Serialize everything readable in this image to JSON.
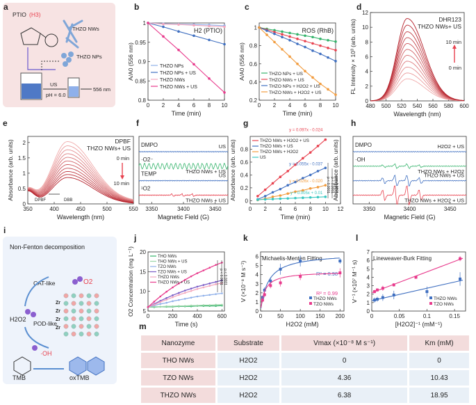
{
  "colors": {
    "red": "#e8424f",
    "pink": "#f06f98",
    "blue": "#3f6fc0",
    "lightblue": "#8fb0ea",
    "orange": "#f29c3e",
    "green": "#34b36b",
    "teal": "#38c7c0",
    "purple": "#7a5cc6",
    "gray": "#999999",
    "darkred": "#c42833",
    "magenta": "#e83a8c"
  },
  "panels": {
    "a": {
      "label": "a",
      "ptio": "PTIO",
      "h3": "(H3)",
      "nws": "THZO NWs",
      "nps": "THZO NPs",
      "us": "US",
      "ph": "pH = 6.0",
      "nm": "556 nm"
    },
    "i": {
      "label": "i",
      "title": "Non-Fenton decomposition",
      "cat": "CAT-like",
      "pod": "POD-like",
      "o2": "O2",
      "h2o2": "H2O2",
      "oh": "·OH",
      "tmb": "TMB",
      "oxtmb": "oxTMB",
      "zr": "Zr"
    }
  },
  "chart_data": [
    {
      "id": "b",
      "type": "line",
      "title": "H2 (PTIO)",
      "xlabel": "Time (min)",
      "ylabel": "A/A0 (556 nm)",
      "xlim": [
        0,
        10
      ],
      "ylim": [
        0.8,
        1.0
      ],
      "x": [
        0,
        2,
        4,
        6,
        8,
        10
      ],
      "xticks": [
        0,
        2,
        4,
        6,
        8,
        10
      ],
      "yticks": [
        0.8,
        0.85,
        0.9,
        0.95,
        1.0
      ],
      "series": [
        {
          "name": "THZO NPs",
          "color": "#8fb0ea",
          "values": [
            1.0,
            0.998,
            0.997,
            0.996,
            0.995,
            0.993
          ]
        },
        {
          "name": "THZO NPs + US",
          "color": "#3f6fc0",
          "values": [
            1.0,
            0.99,
            0.978,
            0.967,
            0.956,
            0.945
          ]
        },
        {
          "name": "THZO NWs",
          "color": "#f4a7bd",
          "values": [
            1.0,
            0.997,
            0.996,
            0.994,
            0.992,
            0.99
          ]
        },
        {
          "name": "THZO NWs + US",
          "color": "#e83a8c",
          "values": [
            1.0,
            0.965,
            0.93,
            0.893,
            0.856,
            0.82
          ]
        }
      ]
    },
    {
      "id": "c",
      "type": "line",
      "title": "ROS (RhB)",
      "xlabel": "Time (min)",
      "ylabel": "A/A0 (556 nm)",
      "xlim": [
        0,
        10
      ],
      "ylim": [
        0.2,
        1.05
      ],
      "x": [
        0,
        1,
        2,
        3,
        4,
        5,
        6,
        7,
        8,
        9,
        10
      ],
      "xticks": [
        0,
        2,
        4,
        6,
        8,
        10
      ],
      "yticks": [
        0.2,
        0.4,
        0.6,
        0.8,
        1.0
      ],
      "series": [
        {
          "name": "THZO NPs + US",
          "color": "#34b36b",
          "values": [
            1.0,
            0.985,
            0.97,
            0.955,
            0.94,
            0.925,
            0.91,
            0.895,
            0.875,
            0.86,
            0.845
          ]
        },
        {
          "name": "THZO NWs + US",
          "color": "#e8424f",
          "values": [
            1.0,
            0.975,
            0.95,
            0.925,
            0.9,
            0.875,
            0.85,
            0.825,
            0.8,
            0.775,
            0.75
          ]
        },
        {
          "name": "THZO NPs + H2O2 + US",
          "color": "#3f6fc0",
          "values": [
            1.0,
            0.965,
            0.93,
            0.895,
            0.86,
            0.82,
            0.785,
            0.745,
            0.71,
            0.67,
            0.63
          ]
        },
        {
          "name": "THZO NWs + H2O2 + US",
          "color": "#f29c3e",
          "values": [
            1.0,
            0.92,
            0.84,
            0.76,
            0.68,
            0.6,
            0.52,
            0.45,
            0.38,
            0.32,
            0.26
          ]
        }
      ]
    },
    {
      "id": "d",
      "type": "line",
      "title": "DHR123",
      "subtitle": "THZO NWs+ US",
      "xlabel": "Wavelength (nm)",
      "ylabel": "FL Intensity × 10³ (arb. units)",
      "xlim": [
        480,
        600
      ],
      "ylim": [
        0,
        12
      ],
      "xticks": [
        480,
        500,
        520,
        540,
        560,
        580,
        600
      ],
      "yticks": [
        0,
        2,
        4,
        6,
        8,
        10,
        12
      ],
      "annotations": [
        "10 min",
        "0 min"
      ],
      "peak_x": 527,
      "curve_peaks": [
        3.0,
        3.8,
        4.6,
        5.4,
        6.2,
        7.0,
        7.8,
        8.6,
        9.4,
        10.3,
        11.2
      ]
    },
    {
      "id": "e",
      "type": "line",
      "title": "DPBF",
      "subtitle": "THZO NWs+ US",
      "xlabel": "Wavelength (nm)",
      "ylabel": "Absorbance (arb. units)",
      "xlim": [
        350,
        550
      ],
      "ylim": [
        0,
        2.2
      ],
      "xticks": [
        350,
        400,
        450,
        500,
        550
      ],
      "yticks": [
        0.0,
        0.5,
        1.0,
        1.5,
        2.0
      ],
      "annotations": [
        "0 min",
        "10 min",
        "DPBF",
        "DBB"
      ],
      "peak_x": 425,
      "curve_peaks": [
        1.95,
        1.82,
        1.7,
        1.58,
        1.47,
        1.36,
        1.25,
        1.14,
        1.04,
        0.95,
        0.86
      ]
    },
    {
      "id": "f",
      "type": "line",
      "xlabel": "Magnetic Field (G)",
      "ylabel": "",
      "xlim": [
        3330,
        3470
      ],
      "xticks": [
        3350,
        3400,
        3450
      ],
      "traces": [
        {
          "name": "DMPO",
          "right": "US",
          "label": "",
          "color": "#3f6fc0"
        },
        {
          "name": "·O2⁻",
          "right": "THZO NWs + US",
          "label": "",
          "color": "#34b36b"
        },
        {
          "name": "TEMP",
          "right": "US",
          "label": "",
          "color": "#3f6fc0"
        },
        {
          "name": "¹O2",
          "right": "THZO NWs + US",
          "label": "",
          "color": "#e8424f"
        }
      ]
    },
    {
      "id": "g",
      "type": "line",
      "xlabel": "Time (min)",
      "ylabel": "Absorbance (arb. units)",
      "xlim": [
        0,
        12
      ],
      "ylim": [
        -0.05,
        1.0
      ],
      "x": [
        1,
        2,
        3,
        4,
        5,
        6,
        7,
        8,
        9,
        10
      ],
      "xticks": [
        0,
        2,
        4,
        6,
        8,
        10,
        12
      ],
      "yticks": [
        0.0,
        0.2,
        0.4,
        0.6,
        0.8
      ],
      "series": [
        {
          "name": "THZO NWs + H2O2 + US",
          "color": "#e8424f",
          "fit": "y = 0.097x - 0.024",
          "values": [
            0.07,
            0.17,
            0.27,
            0.37,
            0.46,
            0.56,
            0.66,
            0.75,
            0.85,
            0.95
          ]
        },
        {
          "name": "THZO NWs + US",
          "color": "#3f6fc0",
          "fit": "y = 0.055x - 0.037",
          "values": [
            0.02,
            0.07,
            0.13,
            0.18,
            0.24,
            0.29,
            0.35,
            0.4,
            0.46,
            0.51
          ]
        },
        {
          "name": "THZO NWs + H2O2",
          "color": "#f29c3e",
          "fit": "y = 0.026x - 0.020",
          "values": [
            0.01,
            0.03,
            0.06,
            0.08,
            0.11,
            0.14,
            0.16,
            0.19,
            0.21,
            0.24
          ]
        },
        {
          "name": "US",
          "color": "#38c7c0",
          "fit": "y = 0.005x + 0.01",
          "values": [
            0.015,
            0.02,
            0.025,
            0.03,
            0.035,
            0.04,
            0.045,
            0.05,
            0.055,
            0.06
          ]
        }
      ],
      "significance": [
        "p < 0.0001",
        "p < 0.0001",
        "p < 0.0001"
      ]
    },
    {
      "id": "h",
      "type": "line",
      "xlabel": "Magnetic Field (G)",
      "ylabel": "Absorbance (arb. units)",
      "xlim": [
        3330,
        3470
      ],
      "xticks": [
        3350,
        3400,
        3450
      ],
      "traces": [
        {
          "name": "DMPO",
          "right": "H2O2 + US",
          "color": "#3f6fc0"
        },
        {
          "name": "·OH",
          "right": "THZO NWs + H2O2",
          "color": "#34b36b"
        },
        {
          "name": "",
          "right": "THZO NWs + US",
          "color": "#3f6fc0"
        },
        {
          "name": "",
          "right": "THZO NWs + H2O2 + US",
          "color": "#e8424f"
        }
      ]
    },
    {
      "id": "j",
      "type": "line",
      "xlabel": "Time (s)",
      "ylabel": "O2 Concentration (mg L⁻¹)",
      "xlim": [
        0,
        620
      ],
      "ylim": [
        5,
        20
      ],
      "xticks": [
        0,
        200,
        400,
        600
      ],
      "yticks": [
        5,
        10,
        15,
        20
      ],
      "x": [
        0,
        50,
        100,
        150,
        200,
        250,
        300,
        350,
        400,
        450,
        500,
        550,
        600
      ],
      "series": [
        {
          "name": "THO NWs",
          "color": "#34b36b",
          "values": [
            6.0,
            6.0,
            6.1,
            6.1,
            6.1,
            6.2,
            6.2,
            6.2,
            6.3,
            6.3,
            6.3,
            6.3,
            6.4
          ]
        },
        {
          "name": "THO NWs + US",
          "color": "#9ad6a8",
          "values": [
            6.0,
            6.1,
            6.1,
            6.2,
            6.2,
            6.3,
            6.3,
            6.4,
            6.4,
            6.5,
            6.5,
            6.6,
            6.6
          ]
        },
        {
          "name": "TZO NWs",
          "color": "#8fb0ea",
          "values": [
            6.0,
            6.4,
            6.8,
            7.1,
            7.5,
            7.8,
            8.1,
            8.4,
            8.7,
            8.9,
            9.1,
            9.3,
            9.5
          ]
        },
        {
          "name": "TZO NWs + US",
          "color": "#7a5cc6",
          "values": [
            6.0,
            6.8,
            7.6,
            8.3,
            9.0,
            9.6,
            10.2,
            10.7,
            11.2,
            11.6,
            12.0,
            12.4,
            12.8
          ]
        },
        {
          "name": "THZO NWs",
          "color": "#f4a7bd",
          "values": [
            6.0,
            6.6,
            7.3,
            7.9,
            8.5,
            9.1,
            9.6,
            10.1,
            10.6,
            11.0,
            11.4,
            11.8,
            12.1
          ]
        },
        {
          "name": "THZO NWs + US",
          "color": "#e83a8c",
          "values": [
            6.0,
            7.4,
            8.7,
            9.9,
            11.0,
            12.0,
            12.9,
            13.8,
            14.6,
            15.3,
            16.0,
            16.7,
            17.3
          ]
        }
      ],
      "significance": [
        "p < 0.0001",
        "p < 0.0001"
      ]
    },
    {
      "id": "k",
      "type": "scatter",
      "title": "Michaelis-Menten Fitting",
      "xlabel": "H2O2 (mM)",
      "ylabel": "V (×10⁻⁸ M s⁻¹)",
      "xlim": [
        0,
        210
      ],
      "ylim": [
        0,
        6.5
      ],
      "xticks": [
        0,
        50,
        100,
        150,
        200
      ],
      "yticks": [
        0,
        1,
        2,
        3,
        4,
        5,
        6
      ],
      "series": [
        {
          "name": "THZO NWs",
          "color": "#3f6fc0",
          "r2": "R² = 0.98",
          "x": [
            5,
            10,
            25,
            50,
            100,
            200
          ],
          "values": [
            1.5,
            2.3,
            3.3,
            4.6,
            5.5,
            5.5
          ],
          "err": [
            0.2,
            0.3,
            0.4,
            0.6,
            0.6,
            0.3
          ],
          "vmax": 6.38,
          "km": 18.95
        },
        {
          "name": "TZO NWs",
          "color": "#e83a8c",
          "r2": "R² = 0.99",
          "x": [
            5,
            10,
            25,
            50,
            100,
            200
          ],
          "values": [
            1.2,
            1.8,
            2.8,
            3.1,
            3.8,
            4.2
          ],
          "err": [
            0.2,
            0.3,
            0.3,
            0.4,
            0.4,
            0.5
          ],
          "vmax": 4.36,
          "km": 10.43
        }
      ]
    },
    {
      "id": "l",
      "type": "scatter",
      "title": "Lineweaver-Burk Fitting",
      "xlabel": "[H2O2]⁻¹ (mM⁻¹)",
      "ylabel": "V⁻¹ (×10⁷ M⁻¹ s)",
      "xlim": [
        0,
        0.17
      ],
      "ylim": [
        0,
        7
      ],
      "xticks": [
        0.0,
        0.05,
        0.1,
        0.15
      ],
      "yticks": [
        0,
        1,
        2,
        3,
        4,
        5,
        6,
        7
      ],
      "series": [
        {
          "name": "THZO NWs",
          "color": "#3f6fc0",
          "x": [
            0.005,
            0.01,
            0.02,
            0.04,
            0.1,
            0.16
          ],
          "values": [
            1.3,
            1.4,
            1.6,
            1.9,
            2.3,
            3.8
          ],
          "err": [
            0.3,
            0.3,
            0.4,
            0.5,
            0.6,
            0.8
          ]
        },
        {
          "name": "TZO NWs",
          "color": "#e83a8c",
          "x": [
            0.005,
            0.01,
            0.02,
            0.04,
            0.08,
            0.16
          ],
          "values": [
            2.3,
            2.5,
            2.7,
            3.1,
            4.0,
            6.2
          ],
          "err": [
            0.2,
            0.2,
            0.3,
            0.2,
            0.2,
            0.3
          ]
        }
      ]
    }
  ],
  "table": {
    "label": "m",
    "headers": [
      "Nanozyme",
      "Substrate",
      "Vmax (×10⁻⁸ M s⁻¹)",
      "Km (mM)"
    ],
    "rows": [
      [
        "THO NWs",
        "H2O2",
        "0",
        "0"
      ],
      [
        "TZO NWs",
        "H2O2",
        "4.36",
        "10.43"
      ],
      [
        "THZO NWs",
        "H2O2",
        "6.38",
        "18.95"
      ]
    ]
  }
}
